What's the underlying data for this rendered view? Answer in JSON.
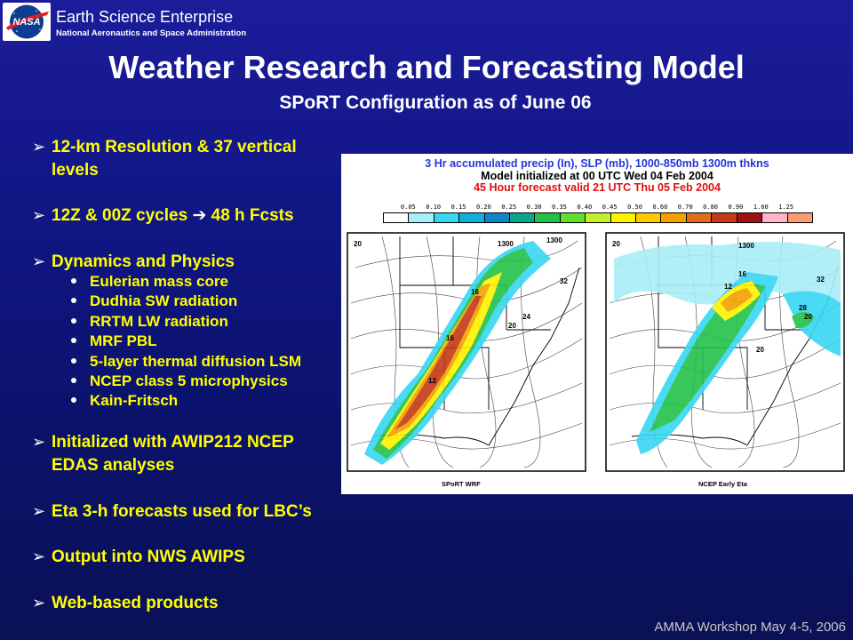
{
  "header": {
    "org_title": "Earth Science Enterprise",
    "org_subtitle": "National Aeronautics and Space Administration",
    "logo_text": "NASA"
  },
  "slide": {
    "title": "Weather Research and Forecasting Model",
    "subtitle": "SPoRT Configuration as of June 06"
  },
  "bullets": {
    "b1_line1": "12-km Resolution & 37 vertical",
    "b1_line2": "levels",
    "b2_a": "12Z & 00Z cycles ",
    "b2_arrow": "➔",
    "b2_b": "  48 h Fcsts",
    "b3": "Dynamics and Physics",
    "subitems": [
      "Eulerian mass core",
      "Dudhia SW radiation",
      "RRTM LW radiation",
      "MRF PBL",
      "5-layer thermal diffusion LSM",
      "NCEP class 5 microphysics",
      "Kain-Fritsch"
    ],
    "b4_line1": "Initialized with AWIP212 NCEP",
    "b4_line2": "EDAS analyses",
    "b5": "Eta 3-h forecasts used for LBC’s",
    "b6": "Output into NWS AWIPS",
    "b7": "Web-based products",
    "arrow_glyph": "➢"
  },
  "figure": {
    "line1": "3 Hr accumulated precip (In), SLP (mb), 1000-850mb 1300m thkns",
    "line2": "Model initialized at 00 UTC Wed 04 Feb 2004",
    "line3": "45 Hour forecast valid 21 UTC Thu 05 Feb 2004",
    "colorbar_ticks": [
      "0.05",
      "0.10",
      "0.15",
      "0.20",
      "0.25",
      "0.30",
      "0.35",
      "0.40",
      "0.45",
      "0.50",
      "0.60",
      "0.70",
      "0.80",
      "0.90",
      "1.00",
      "1.25"
    ],
    "colorbar_colors": [
      "#ffffff",
      "#a8eef8",
      "#38d6f2",
      "#14aedc",
      "#1483c6",
      "#0da58a",
      "#23c14a",
      "#61de2e",
      "#c2f02a",
      "#fff200",
      "#ffc900",
      "#f6a000",
      "#de6e1e",
      "#c43a16",
      "#a01016",
      "#ffb4c8",
      "#ff9c6e"
    ],
    "left_map_caption": "SPoRT WRF",
    "right_map_caption": "NCEP Early Eta",
    "left_labels": [
      "20",
      "1300",
      "1300",
      "32",
      "16",
      "16",
      "24",
      "20",
      "12"
    ],
    "right_labels": [
      "20",
      "1300",
      "16",
      "12",
      "32",
      "28",
      "20",
      "20"
    ]
  },
  "footer": {
    "text": "AMMA Workshop May 4-5, 2006"
  }
}
